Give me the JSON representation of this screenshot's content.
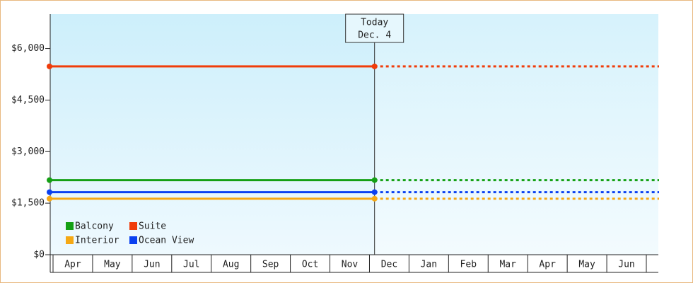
{
  "chart_data": {
    "type": "line",
    "categories": [
      "Apr",
      "May",
      "Jun",
      "Jul",
      "Aug",
      "Sep",
      "Oct",
      "Nov",
      "Dec",
      "Jan",
      "Feb",
      "Mar",
      "Apr",
      "May",
      "Jun"
    ],
    "series": [
      {
        "name": "Balcony",
        "color": "#14a014",
        "value": 2170
      },
      {
        "name": "Suite",
        "color": "#f03c0a",
        "value": 5480
      },
      {
        "name": "Interior",
        "color": "#f5a814",
        "value": 1630
      },
      {
        "name": "Ocean View",
        "color": "#0a40f0",
        "value": 1820
      }
    ],
    "ylim": [
      0,
      7000
    ],
    "yticks": [
      {
        "value": 0,
        "label": "$0"
      },
      {
        "value": 1500,
        "label": "$1,500"
      },
      {
        "value": 3000,
        "label": "$3,000"
      },
      {
        "value": 4500,
        "label": "$4,500"
      },
      {
        "value": 6000,
        "label": "$6,000"
      }
    ],
    "today": [
      "Today",
      "Dec. 4"
    ],
    "legend": "lower left"
  }
}
